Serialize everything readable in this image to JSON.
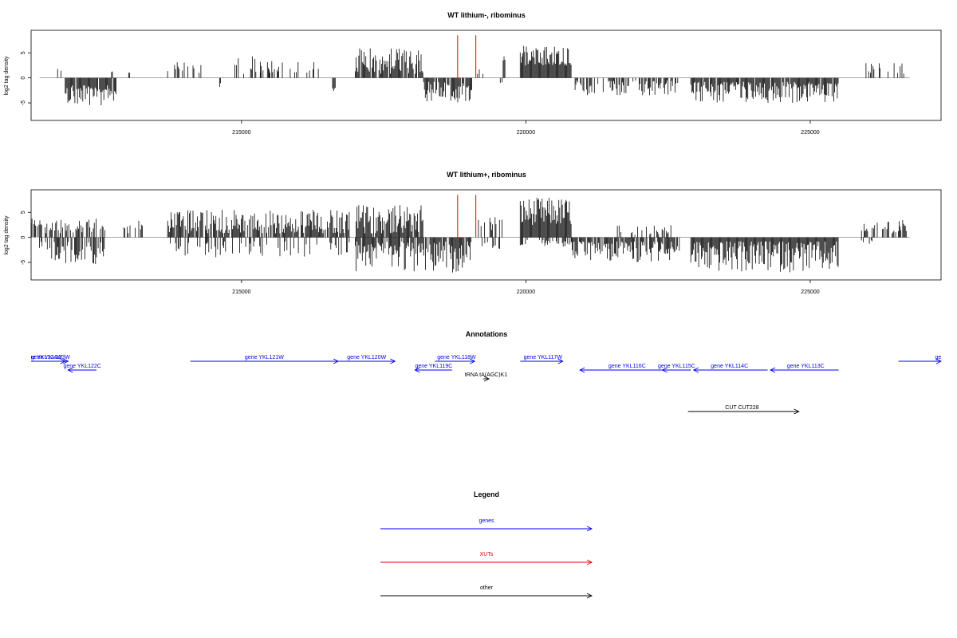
{
  "chart_data": [
    {
      "type": "bar",
      "title": "WT lithium-, ribominus",
      "xlabel": "",
      "ylabel": "log2 tag density",
      "xlim": [
        211300,
        227300
      ],
      "ylim": [
        -8.5,
        9.5
      ],
      "x_ticks": [
        215000,
        220000,
        225000
      ],
      "y_ticks": [
        -5,
        0,
        5
      ],
      "grid": false,
      "baseline_color": "#888888",
      "bar_color": "#000000",
      "highlight_color": "#dd0000",
      "highlights": [
        {
          "x": 218800,
          "value": 8.5
        },
        {
          "x": 219120,
          "value": 8.5
        }
      ],
      "segments": [
        {
          "x0": 211750,
          "x1": 211850,
          "density": 0.3,
          "min": 1.0,
          "max": 2.0,
          "sign": 1
        },
        {
          "x0": 211900,
          "x1": 212800,
          "density": 0.9,
          "min": 1.5,
          "max": 5.5,
          "sign": -1
        },
        {
          "x0": 212700,
          "x1": 212750,
          "density": 0.4,
          "min": 1.0,
          "max": 2.0,
          "sign": 1
        },
        {
          "x0": 213000,
          "x1": 213050,
          "density": 0.4,
          "min": 1.0,
          "max": 2.0,
          "sign": 1
        },
        {
          "x0": 213700,
          "x1": 214300,
          "density": 0.35,
          "min": 1.0,
          "max": 3.2,
          "sign": 1
        },
        {
          "x0": 214600,
          "x1": 214800,
          "density": 0.3,
          "min": 1.0,
          "max": 2.2,
          "sign": -1
        },
        {
          "x0": 214850,
          "x1": 215500,
          "density": 0.3,
          "min": 0.8,
          "max": 4.3,
          "sign": 1
        },
        {
          "x0": 215300,
          "x1": 216400,
          "density": 0.3,
          "min": 0.8,
          "max": 3.5,
          "sign": 1
        },
        {
          "x0": 216600,
          "x1": 216650,
          "density": 0.5,
          "min": 1.5,
          "max": 2.8,
          "sign": -1
        },
        {
          "x0": 217000,
          "x1": 218200,
          "density": 0.85,
          "min": 0.8,
          "max": 6.0,
          "sign": 1
        },
        {
          "x0": 218200,
          "x1": 219050,
          "density": 0.9,
          "min": 0.8,
          "max": 5.0,
          "sign": -1
        },
        {
          "x0": 219150,
          "x1": 219250,
          "density": 0.5,
          "min": 0.5,
          "max": 1.8,
          "sign": 1
        },
        {
          "x0": 219550,
          "x1": 219600,
          "density": 0.5,
          "min": 0.5,
          "max": 2.5,
          "sign": -1
        },
        {
          "x0": 219600,
          "x1": 219650,
          "density": 0.5,
          "min": 2.0,
          "max": 5.0,
          "sign": 1
        },
        {
          "x0": 219900,
          "x1": 220800,
          "density": 1.0,
          "min": 2.5,
          "max": 6.5,
          "sign": 1
        },
        {
          "x0": 220850,
          "x1": 222700,
          "density": 0.6,
          "min": 0.5,
          "max": 3.5,
          "sign": -1
        },
        {
          "x0": 222900,
          "x1": 225500,
          "density": 0.9,
          "min": 0.8,
          "max": 5.0,
          "sign": -1
        },
        {
          "x0": 225950,
          "x1": 226700,
          "density": 0.35,
          "min": 0.8,
          "max": 3.2,
          "sign": 1
        }
      ]
    },
    {
      "type": "bar",
      "title": "WT lithium+, ribominus",
      "xlabel": "",
      "ylabel": "log2 tag density",
      "xlim": [
        211300,
        227300
      ],
      "ylim": [
        -8.5,
        9.5
      ],
      "x_ticks": [
        215000,
        220000,
        225000
      ],
      "y_ticks": [
        -5,
        0,
        5
      ],
      "grid": false,
      "baseline_color": "#888888",
      "bar_color": "#000000",
      "highlight_color": "#dd0000",
      "highlights": [
        {
          "x": 218800,
          "value": 8.5
        },
        {
          "x": 219120,
          "value": 8.5
        }
      ],
      "segments": [
        {
          "x0": 211300,
          "x1": 212600,
          "density": 0.55,
          "min": 0.8,
          "max": 3.8,
          "sign": 1
        },
        {
          "x0": 211400,
          "x1": 212600,
          "density": 0.6,
          "min": 0.8,
          "max": 5.5,
          "sign": -1
        },
        {
          "x0": 212900,
          "x1": 213400,
          "density": 0.3,
          "min": 0.8,
          "max": 3.5,
          "sign": 1
        },
        {
          "x0": 213700,
          "x1": 216900,
          "density": 0.85,
          "min": 0.8,
          "max": 5.5,
          "sign": 1
        },
        {
          "x0": 213700,
          "x1": 216900,
          "density": 0.3,
          "min": 0.8,
          "max": 4.0,
          "sign": -1
        },
        {
          "x0": 217000,
          "x1": 218200,
          "density": 0.9,
          "min": 0.8,
          "max": 6.5,
          "sign": 1
        },
        {
          "x0": 217000,
          "x1": 219050,
          "density": 0.85,
          "min": 0.8,
          "max": 7.0,
          "sign": -1
        },
        {
          "x0": 219150,
          "x1": 219600,
          "density": 0.4,
          "min": 0.8,
          "max": 4.5,
          "sign": 1
        },
        {
          "x0": 219200,
          "x1": 219600,
          "density": 0.3,
          "min": 0.8,
          "max": 2.5,
          "sign": -1
        },
        {
          "x0": 219900,
          "x1": 220800,
          "density": 1.0,
          "min": 2.5,
          "max": 8.0,
          "sign": 1
        },
        {
          "x0": 219900,
          "x1": 220800,
          "density": 0.4,
          "min": 0.5,
          "max": 2.0,
          "sign": -1
        },
        {
          "x0": 220800,
          "x1": 222700,
          "density": 0.85,
          "min": 0.8,
          "max": 5.0,
          "sign": -1
        },
        {
          "x0": 221500,
          "x1": 222600,
          "density": 0.3,
          "min": 0.5,
          "max": 2.5,
          "sign": 1
        },
        {
          "x0": 222900,
          "x1": 225500,
          "density": 1.0,
          "min": 0.8,
          "max": 7.0,
          "sign": -1
        },
        {
          "x0": 225900,
          "x1": 226700,
          "density": 0.6,
          "min": 0.8,
          "max": 3.5,
          "sign": 1
        },
        {
          "x0": 225900,
          "x1": 226100,
          "density": 0.3,
          "min": 0.5,
          "max": 1.5,
          "sign": -1
        }
      ]
    }
  ],
  "annotations": {
    "title": "Annotations",
    "features": [
      {
        "label": "gene YKL124W",
        "start": 211300,
        "end": 211900,
        "strand": "+",
        "color": "#0000ee",
        "row": 0,
        "label_x": 211500
      },
      {
        "label": "gene YKL123W",
        "start": 211900,
        "end": 211950,
        "strand": "+",
        "color": "#0000ee",
        "row": 0,
        "label_x": 211640
      },
      {
        "label": "gene YKL122C",
        "start": 211950,
        "end": 212450,
        "strand": "-",
        "color": "#0000ee",
        "row": 1,
        "label_x": 212200
      },
      {
        "label": "gene YKL121W",
        "start": 214100,
        "end": 216700,
        "strand": "+",
        "color": "#0000ee",
        "row": 0,
        "label_x": 215400
      },
      {
        "label": "gene YKL120W",
        "start": 216700,
        "end": 217700,
        "strand": "+",
        "color": "#0000ee",
        "row": 0,
        "label_x": 217200
      },
      {
        "label": "gene YKL119C",
        "start": 218050,
        "end": 218700,
        "strand": "-",
        "color": "#0000ee",
        "row": 1,
        "label_x": 218380
      },
      {
        "label": "gene YKL118W",
        "start": 218400,
        "end": 219100,
        "strand": "+",
        "color": "#0000ee",
        "row": 0,
        "label_x": 218780
      },
      {
        "label": "tRNA tA(AGC)K1",
        "start": 219250,
        "end": 219350,
        "strand": "+",
        "color": "#000000",
        "row": 2,
        "label_x": 219300
      },
      {
        "label": "gene YKL117W",
        "start": 219900,
        "end": 220650,
        "strand": "+",
        "color": "#0000ee",
        "row": 0,
        "label_x": 220300
      },
      {
        "label": "gene YKL116C",
        "start": 220950,
        "end": 222600,
        "strand": "-",
        "color": "#0000ee",
        "row": 1,
        "label_x": 221780
      },
      {
        "label": "gene YKL115C",
        "start": 222400,
        "end": 222900,
        "strand": "-",
        "color": "#0000ee",
        "row": 1,
        "label_x": 222650
      },
      {
        "label": "gene YKL114C",
        "start": 222950,
        "end": 224250,
        "strand": "-",
        "color": "#0000ee",
        "row": 1,
        "label_x": 223580
      },
      {
        "label": "gene YKL113C",
        "start": 224300,
        "end": 225500,
        "strand": "-",
        "color": "#0000ee",
        "row": 1,
        "label_x": 224920
      },
      {
        "label": "ge",
        "start": 226550,
        "end": 227300,
        "strand": "+",
        "color": "#0000ee",
        "row": 0,
        "label_x": 227250
      },
      {
        "label": "CUT CUT228",
        "start": 222850,
        "end": 224800,
        "strand": "+",
        "color": "#000000",
        "row": 3,
        "label_x": 223800
      }
    ]
  },
  "legend": {
    "title": "Legend",
    "items": [
      {
        "label": "genes",
        "color": "#0000ee"
      },
      {
        "label": "XUTs",
        "color": "#dd0000"
      },
      {
        "label": "other",
        "color": "#000000"
      }
    ]
  }
}
